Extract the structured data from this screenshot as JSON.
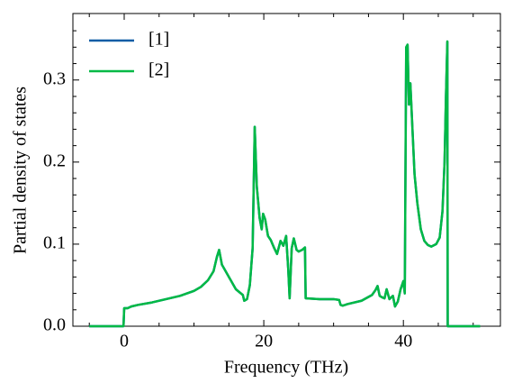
{
  "chart_data": {
    "type": "line",
    "xlabel": "Frequency (THz)",
    "ylabel": "Partial density of states",
    "x": [
      -5,
      -0.1,
      0,
      0.5,
      1,
      2,
      4,
      6,
      8,
      10,
      11,
      12,
      12.8,
      13.3,
      13.6,
      14,
      15,
      16,
      17,
      17.2,
      17.6,
      18,
      18.4,
      18.7,
      19,
      19.4,
      19.7,
      19.9,
      20.2,
      20.6,
      21,
      21.5,
      21.9,
      22.4,
      22.8,
      23.2,
      23.5,
      23.7,
      24,
      24.3,
      24.7,
      25,
      25.5,
      25.9,
      26,
      28,
      30,
      30.8,
      31,
      31.3,
      32,
      34,
      35.5,
      36,
      36.3,
      36.6,
      37,
      37.3,
      37.6,
      38,
      38.5,
      38.8,
      39.2,
      39.6,
      40,
      40.2,
      40.4,
      40.6,
      40.8,
      41,
      41.3,
      41.6,
      42,
      42.5,
      43,
      43.5,
      44,
      44.7,
      45.2,
      45.6,
      45.9,
      46.1,
      46.3,
      46.35,
      51
    ],
    "series": [
      {
        "name": "[1]",
        "color": "#0C5DA5",
        "values": [
          0,
          0,
          0.022,
          0.022,
          0.024,
          0.026,
          0.029,
          0.033,
          0.037,
          0.043,
          0.048,
          0.056,
          0.067,
          0.085,
          0.093,
          0.075,
          0.06,
          0.045,
          0.038,
          0.031,
          0.033,
          0.05,
          0.095,
          0.243,
          0.17,
          0.132,
          0.118,
          0.137,
          0.13,
          0.11,
          0.105,
          0.095,
          0.088,
          0.104,
          0.098,
          0.11,
          0.07,
          0.034,
          0.095,
          0.107,
          0.093,
          0.091,
          0.093,
          0.096,
          0.034,
          0.033,
          0.033,
          0.032,
          0.026,
          0.025,
          0.027,
          0.031,
          0.038,
          0.044,
          0.049,
          0.037,
          0.035,
          0.034,
          0.045,
          0.033,
          0.037,
          0.024,
          0.03,
          0.045,
          0.055,
          0.04,
          0.34,
          0.343,
          0.27,
          0.296,
          0.24,
          0.185,
          0.15,
          0.118,
          0.104,
          0.099,
          0.097,
          0.1,
          0.108,
          0.14,
          0.2,
          0.28,
          0.347,
          0,
          0
        ]
      },
      {
        "name": "[2]",
        "color": "#00B945",
        "values": [
          0,
          0,
          0.022,
          0.022,
          0.024,
          0.026,
          0.029,
          0.033,
          0.037,
          0.043,
          0.048,
          0.056,
          0.067,
          0.085,
          0.093,
          0.075,
          0.06,
          0.045,
          0.038,
          0.031,
          0.033,
          0.05,
          0.095,
          0.243,
          0.17,
          0.132,
          0.118,
          0.137,
          0.13,
          0.11,
          0.105,
          0.095,
          0.088,
          0.104,
          0.098,
          0.11,
          0.07,
          0.034,
          0.095,
          0.107,
          0.093,
          0.091,
          0.093,
          0.096,
          0.034,
          0.033,
          0.033,
          0.032,
          0.026,
          0.025,
          0.027,
          0.031,
          0.038,
          0.044,
          0.049,
          0.037,
          0.035,
          0.034,
          0.045,
          0.033,
          0.037,
          0.024,
          0.03,
          0.045,
          0.055,
          0.04,
          0.34,
          0.343,
          0.27,
          0.296,
          0.24,
          0.185,
          0.15,
          0.118,
          0.104,
          0.099,
          0.097,
          0.1,
          0.108,
          0.14,
          0.2,
          0.28,
          0.347,
          0,
          0
        ]
      }
    ],
    "xlim": [
      -7.35,
      53.9
    ],
    "ylim": [
      0,
      0.381
    ],
    "xticks": [
      0,
      20,
      40
    ],
    "yticks": [
      {
        "value": 0,
        "label": "0.0"
      },
      0.1,
      0.2,
      0.3
    ],
    "xminorticks": [
      -5,
      5,
      10,
      15,
      25,
      30,
      35,
      45,
      50
    ],
    "yminorticks": [
      0.02,
      0.04,
      0.06,
      0.08,
      0.12,
      0.14,
      0.16,
      0.18,
      0.22,
      0.24,
      0.26,
      0.28,
      0.32,
      0.34,
      0.36
    ],
    "legend": "upper-left",
    "grid": false
  }
}
